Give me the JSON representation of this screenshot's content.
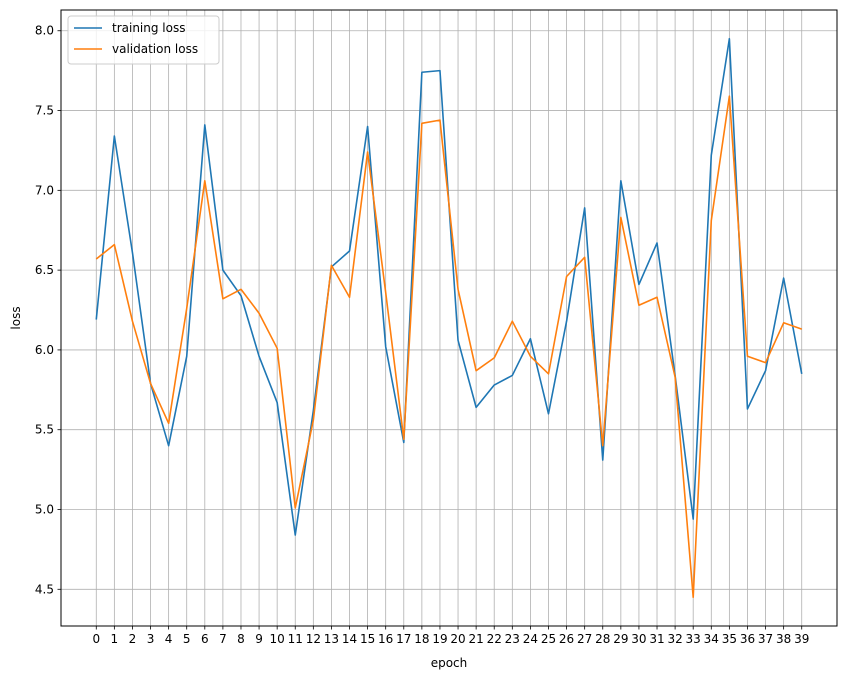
{
  "chart_data": {
    "type": "line",
    "title": "",
    "xlabel": "epoch",
    "ylabel": "loss",
    "x": [
      0,
      1,
      2,
      3,
      4,
      5,
      6,
      7,
      8,
      9,
      10,
      11,
      12,
      13,
      14,
      15,
      16,
      17,
      18,
      19,
      20,
      21,
      22,
      23,
      24,
      25,
      26,
      27,
      28,
      29,
      30,
      31,
      32,
      33,
      34,
      35,
      36,
      37,
      38,
      39
    ],
    "x_tick_labels": [
      "0",
      "1",
      "2",
      "3",
      "4",
      "5",
      "6",
      "7",
      "8",
      "9",
      "10",
      "11",
      "12",
      "13",
      "14",
      "15",
      "16",
      "17",
      "18",
      "19",
      "20",
      "21",
      "22",
      "23",
      "24",
      "25",
      "26",
      "27",
      "28",
      "29",
      "30",
      "31",
      "32",
      "33",
      "34",
      "35",
      "36",
      "37",
      "38",
      "39"
    ],
    "y_ticks": [
      4.5,
      5.0,
      5.5,
      6.0,
      6.5,
      7.0,
      7.5,
      8.0
    ],
    "y_tick_labels": [
      "4.5",
      "5.0",
      "5.5",
      "6.0",
      "6.5",
      "7.0",
      "7.5",
      "8.0"
    ],
    "xlim": [
      -1.95,
      40.95
    ],
    "ylim": [
      4.27,
      8.13
    ],
    "grid": true,
    "legend_position": "upper-left",
    "series": [
      {
        "name": "training loss",
        "color": "#1f77b4",
        "values": [
          6.19,
          7.34,
          6.61,
          5.79,
          5.4,
          5.96,
          7.41,
          6.5,
          6.34,
          5.96,
          5.67,
          4.84,
          5.62,
          6.52,
          6.62,
          7.4,
          6.02,
          5.42,
          7.74,
          7.75,
          6.06,
          5.64,
          5.78,
          5.84,
          6.07,
          5.6,
          6.18,
          6.89,
          5.31,
          7.06,
          6.41,
          6.67,
          5.84,
          4.94,
          7.22,
          7.95,
          5.63,
          5.87,
          6.45,
          5.85
        ]
      },
      {
        "name": "validation loss",
        "color": "#ff7f0e",
        "values": [
          6.57,
          6.66,
          6.18,
          5.79,
          5.54,
          6.26,
          7.06,
          6.32,
          6.38,
          6.23,
          6.01,
          5.01,
          5.56,
          6.53,
          6.33,
          7.24,
          6.36,
          5.44,
          7.42,
          7.44,
          6.38,
          5.87,
          5.95,
          6.18,
          5.96,
          5.85,
          6.46,
          6.58,
          5.4,
          6.83,
          6.28,
          6.33,
          5.83,
          4.45,
          6.81,
          7.59,
          5.96,
          5.92,
          6.17,
          6.13
        ]
      }
    ]
  }
}
